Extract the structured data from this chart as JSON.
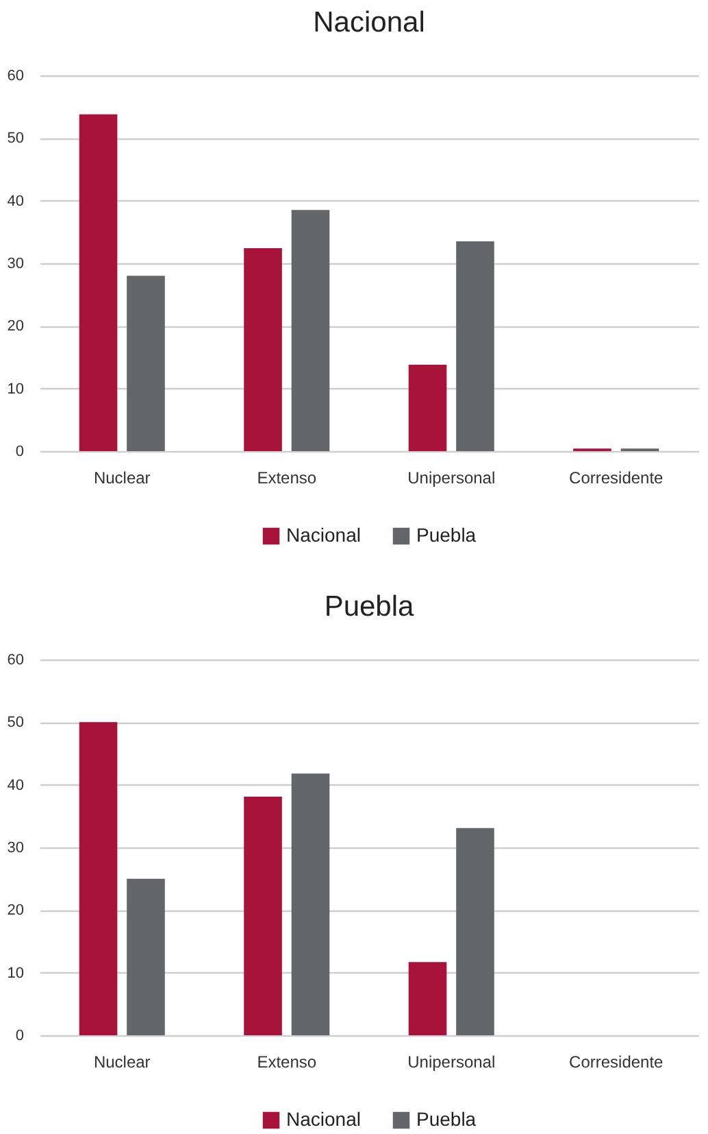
{
  "chart_data": [
    {
      "type": "bar",
      "title": "Nacional",
      "categories": [
        "Nuclear",
        "Extenso",
        "Unipersonal",
        "Corresidente"
      ],
      "series": [
        {
          "name": "Nacional",
          "color": "#a8133c",
          "values": [
            53.8,
            32.4,
            13.8,
            0.4
          ]
        },
        {
          "name": "Puebla",
          "color": "#636669",
          "values": [
            28.0,
            38.5,
            33.5,
            0.4
          ]
        }
      ],
      "ylim": [
        0,
        60
      ],
      "yticks": [
        0,
        10,
        20,
        30,
        40,
        50,
        60
      ],
      "grid": "y",
      "legend": "bottom"
    },
    {
      "type": "bar",
      "title": "Puebla",
      "categories": [
        "Nuclear",
        "Extenso",
        "Unipersonal",
        "Corresidente"
      ],
      "series": [
        {
          "name": "Nacional",
          "color": "#a8133c",
          "values": [
            50.0,
            38.1,
            11.7,
            0
          ]
        },
        {
          "name": "Puebla",
          "color": "#636669",
          "values": [
            25.0,
            41.8,
            33.1,
            0
          ]
        }
      ],
      "ylim": [
        0,
        60
      ],
      "yticks": [
        0,
        10,
        20,
        30,
        40,
        50,
        60
      ],
      "grid": "y",
      "legend": "bottom"
    }
  ]
}
